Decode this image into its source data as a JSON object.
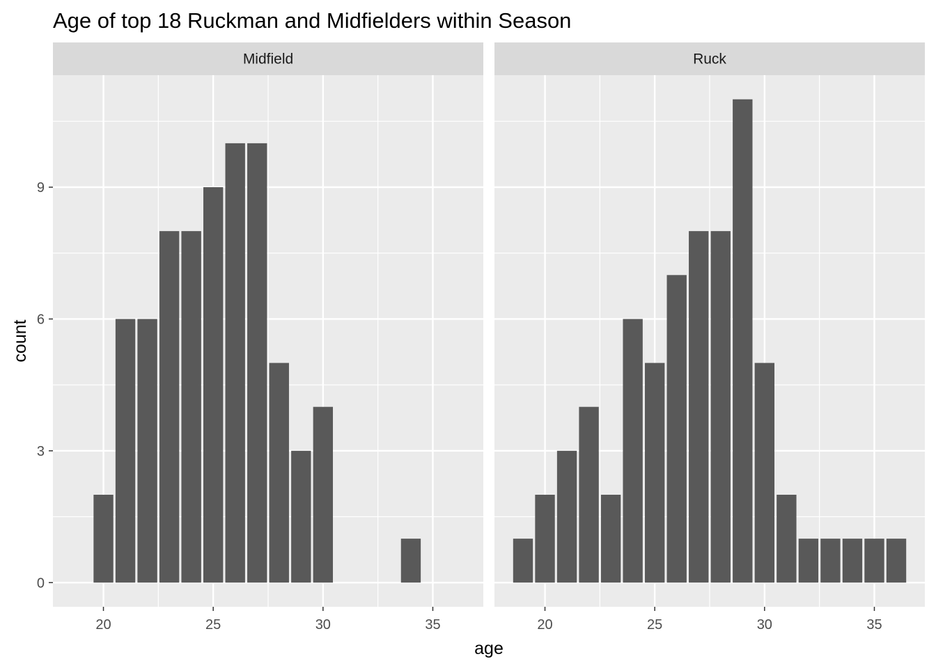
{
  "chart_data": {
    "type": "bar",
    "title": "Age of top 18 Ruckman and Midfielders within Season",
    "xlabel": "age",
    "ylabel": "count",
    "xlim": [
      17.7,
      37.3
    ],
    "ylim": [
      -0.55,
      11.55
    ],
    "x_ticks": [
      20,
      25,
      30,
      35
    ],
    "y_ticks": [
      0,
      3,
      6,
      9
    ],
    "grid": true,
    "bar_color": "#595959",
    "panel_bg": "#ebebeb",
    "strip_bg": "#d9d9d9",
    "gridline_color": "#ffffff",
    "facets": [
      {
        "label": "Midfield",
        "x": [
          20,
          21,
          22,
          23,
          24,
          25,
          26,
          27,
          28,
          29,
          30,
          34
        ],
        "values": [
          2,
          6,
          6,
          8,
          8,
          9,
          10,
          10,
          5,
          3,
          4,
          1
        ]
      },
      {
        "label": "Ruck",
        "x": [
          19,
          20,
          21,
          22,
          23,
          24,
          25,
          26,
          27,
          28,
          29,
          30,
          31,
          32,
          33,
          34,
          35,
          36
        ],
        "values": [
          1,
          2,
          3,
          4,
          2,
          6,
          5,
          7,
          8,
          8,
          11,
          5,
          2,
          1,
          1,
          1,
          1,
          1
        ]
      }
    ]
  }
}
